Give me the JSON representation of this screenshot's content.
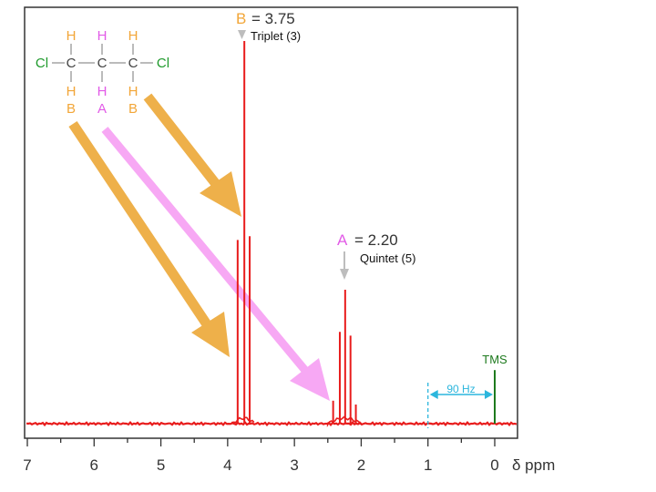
{
  "chart_data": {
    "type": "line",
    "xlabel": "δ ppm",
    "xlim": [
      7,
      0
    ],
    "x_ticks": [
      "7",
      "6",
      "5",
      "4",
      "3",
      "2",
      "1",
      "0"
    ],
    "grid": false,
    "colors": {
      "spectrum": "#e81c1c",
      "b_label": "#f2a638",
      "a_label": "#e25be7",
      "cl_label": "#1f9a2c",
      "tms": "#1e7a1e",
      "hz_marker": "#2cb6dd",
      "arrow_b": "#eeb04a",
      "arrow_a": "#f7a8f4",
      "pointer": "#bdbdbd"
    },
    "peaks": [
      {
        "group": "B",
        "shift": 3.75,
        "multiplicity": "Triplet (3)",
        "lines": [
          3.85,
          3.75,
          3.67
        ],
        "heights": [
          0.48,
          1.0,
          0.49
        ]
      },
      {
        "group": "A",
        "shift": 2.2,
        "multiplicity": "Quintet (5)",
        "lines": [
          2.42,
          2.32,
          2.24,
          2.16,
          2.08
        ],
        "heights": [
          0.06,
          0.24,
          0.35,
          0.23,
          0.05
        ]
      }
    ],
    "reference": {
      "label": "TMS",
      "shift": 0,
      "height": 0.14
    },
    "scale_marker": {
      "label": "90 Hz",
      "from": 1.0,
      "to": 0.0
    },
    "annotations": {
      "b_letter": "B",
      "b_value": "= 3.75",
      "b_multiplicity": "Triplet (3)",
      "a_letter": "A",
      "a_value": "= 2.20",
      "a_multiplicity": "Quintet (5)"
    },
    "molecule": {
      "atoms_top": [
        "H",
        "H",
        "H"
      ],
      "backbone": [
        "Cl",
        "C",
        "C",
        "C",
        "Cl"
      ],
      "atoms_bottom": [
        "H",
        "H",
        "H"
      ],
      "group_labels": [
        "B",
        "A",
        "B"
      ]
    }
  }
}
